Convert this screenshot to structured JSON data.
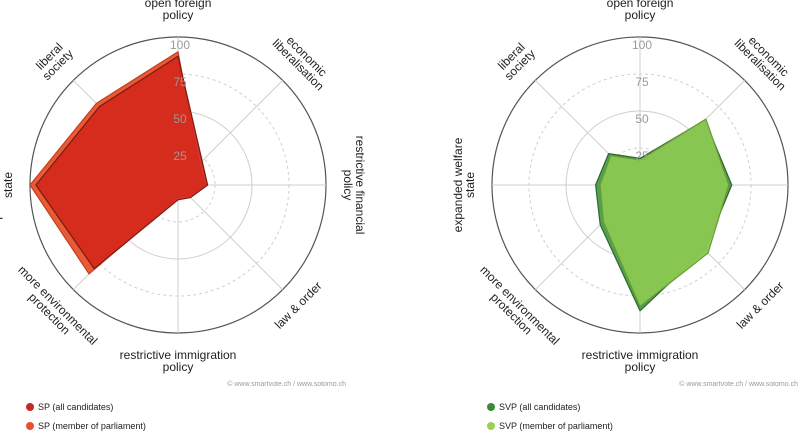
{
  "chart_data": [
    {
      "type": "radar",
      "axes": [
        {
          "label": [
            "open foreign",
            "policy"
          ]
        },
        {
          "label": [
            "economic",
            "liberalisation"
          ]
        },
        {
          "label": [
            "restrictive financial",
            "policy"
          ]
        },
        {
          "label": [
            "law & order"
          ]
        },
        {
          "label": [
            "restrictive immigration",
            "policy"
          ]
        },
        {
          "label": [
            "more environmental",
            "protection"
          ]
        },
        {
          "label": [
            "expanded welfare",
            "state"
          ]
        },
        {
          "label": [
            "liberal",
            "society"
          ]
        }
      ],
      "ticks": [
        25,
        50,
        75,
        100
      ],
      "range": [
        0,
        100
      ],
      "series": [
        {
          "name": "SP (member of parliament)",
          "color": "#e8522a",
          "stroke": "#c24020",
          "values": [
            90,
            20,
            18,
            10,
            8,
            85,
            100,
            78
          ]
        },
        {
          "name": "SP (all candidates)",
          "color": "#d42a1c",
          "stroke": "#7a1a14",
          "values": [
            87,
            23,
            20,
            12,
            10,
            80,
            96,
            75
          ]
        }
      ],
      "credit": "© www.smartvote.ch / www.sotomo.ch"
    },
    {
      "type": "radar",
      "axes": [
        {
          "label": [
            "open foreign",
            "policy"
          ]
        },
        {
          "label": [
            "economic",
            "liberalisation"
          ]
        },
        {
          "label": [
            "restrictive financial",
            "policy"
          ]
        },
        {
          "label": [
            "law & order"
          ]
        },
        {
          "label": [
            "restrictive immigration",
            "policy"
          ]
        },
        {
          "label": [
            "more environmental",
            "protection"
          ]
        },
        {
          "label": [
            "expanded welfare",
            "state"
          ]
        },
        {
          "label": [
            "liberal",
            "society"
          ]
        }
      ],
      "ticks": [
        25,
        50,
        75,
        100
      ],
      "range": [
        0,
        100
      ],
      "series": [
        {
          "name": "SVP (all candidates)",
          "color": "#4a9a4a",
          "stroke": "#2a6a2a",
          "values": [
            18,
            62,
            62,
            62,
            85,
            38,
            30,
            30
          ]
        },
        {
          "name": "SVP (member of parliament)",
          "color": "#8ac850",
          "stroke": "#6a9a38",
          "values": [
            17,
            63,
            60,
            65,
            82,
            35,
            27,
            28
          ]
        }
      ],
      "credit": "© www.smartvote.ch / www.sotomo.ch"
    }
  ],
  "legends": [
    {
      "items": [
        {
          "label": "SP (all candidates)",
          "color": "#c42a22"
        },
        {
          "label": "SP (member of parliament)",
          "color": "#e8522a"
        }
      ]
    },
    {
      "items": [
        {
          "label": "SVP (all candidates)",
          "color": "#3a8a3a"
        },
        {
          "label": "SVP (member of parliament)",
          "color": "#9ad058"
        }
      ]
    }
  ]
}
